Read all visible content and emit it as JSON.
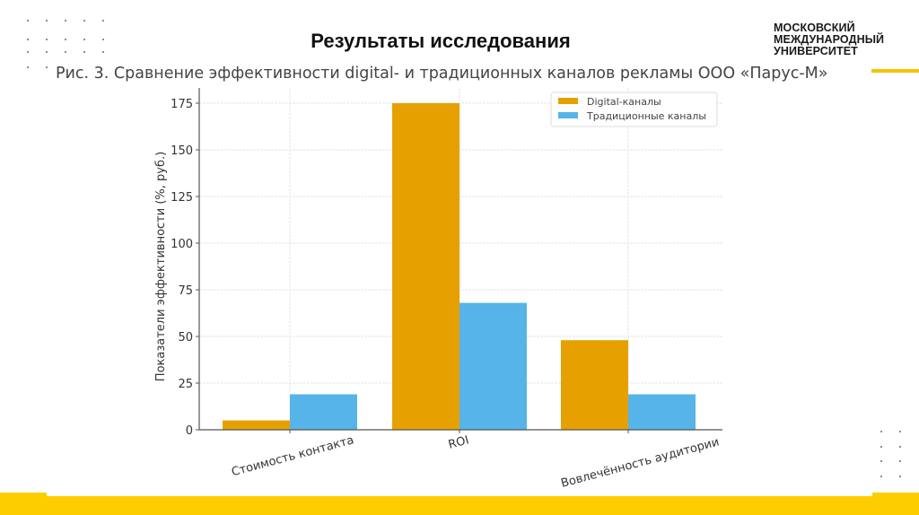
{
  "slide": {
    "title": "Результаты исследования",
    "logo": {
      "line1": "МОСКОВСКИЙ",
      "line2": "МЕЖДУНАРОДНЫЙ",
      "line3": "УНИВЕРСИТЕТ"
    },
    "figure_caption": "Рис. 3. Сравнение эффективности digital- и традиционных каналов рекламы ООО «Парус-М»",
    "colors": {
      "accent_yellow": "#fecd00",
      "digital": "#e6a000",
      "traditional": "#56b4e9"
    }
  },
  "chart_data": {
    "type": "bar",
    "title": "Рис. 3. Сравнение эффективности digital- и традиционных каналов рекламы ООО «Парус-М»",
    "xlabel": "",
    "ylabel": "Показатели эффективности (%, руб.)",
    "categories": [
      "Стоимость контакта",
      "ROI",
      "Вовлечённость аудитории"
    ],
    "series": [
      {
        "name": "Digital-каналы",
        "color": "#e6a000",
        "values": [
          5,
          175,
          48
        ]
      },
      {
        "name": "Традиционные каналы",
        "color": "#56b4e9",
        "values": [
          19,
          68,
          19
        ]
      }
    ],
    "yticks": [
      0,
      25,
      50,
      75,
      100,
      125,
      150,
      175
    ],
    "ylim": [
      0,
      175
    ],
    "grid": true,
    "legend_position": "upper right"
  }
}
